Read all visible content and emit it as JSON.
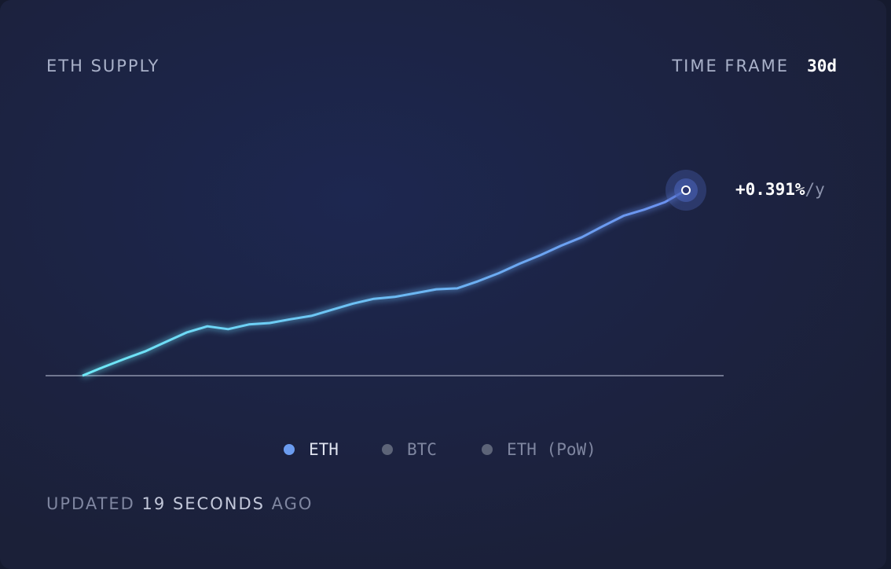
{
  "chart_data": {
    "type": "line",
    "title": "ETH SUPPLY",
    "time_frame_label": "TIME FRAME",
    "time_frame": "30d",
    "series": [
      {
        "name": "ETH",
        "color_start": "#6ee9f7",
        "color_end": "#6b8ff0",
        "values": [
          0,
          0.018,
          0.035,
          0.051,
          0.071,
          0.091,
          0.104,
          0.098,
          0.108,
          0.111,
          0.119,
          0.126,
          0.139,
          0.152,
          0.162,
          0.166,
          0.174,
          0.182,
          0.184,
          0.199,
          0.216,
          0.236,
          0.254,
          0.274,
          0.292,
          0.315,
          0.337,
          0.35,
          0.366,
          0.391
        ]
      }
    ],
    "end_label": "+0.391%",
    "end_unit": "/y",
    "legend": [
      {
        "name": "ETH",
        "color": "#6b9cf0"
      },
      {
        "name": "BTC",
        "color": "#5d6478"
      },
      {
        "name": "ETH (PoW)",
        "color": "#5d6478"
      }
    ],
    "footer": {
      "prefix": "UPDATED",
      "count": "19",
      "unit": "SECONDS",
      "suffix": "AGO"
    }
  }
}
